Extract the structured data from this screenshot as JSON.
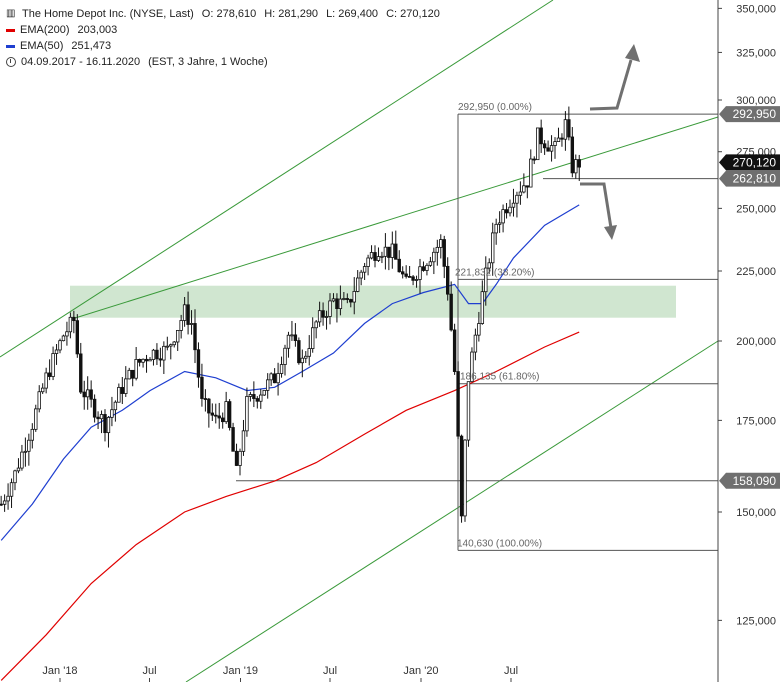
{
  "header": {
    "title": "The Home Depot Inc. (NYSE, Last)",
    "ohlc": {
      "o": "O: 278,610",
      "h": "H: 281,290",
      "l": "L: 269,400",
      "c": "C: 270,120"
    },
    "ema200": {
      "label": "EMA(200)",
      "value": "203,003",
      "color": "#e00000"
    },
    "ema50": {
      "label": "EMA(50)",
      "value": "251,473",
      "color": "#1f3fd0"
    },
    "range": "04.09.2017 - 16.11.2020",
    "range_note": "(EST, 3 Jahre, 1 Woche)"
  },
  "chart_data": {
    "type": "candlestick",
    "y_scale": "log",
    "ylim": [
      112000,
      360000
    ],
    "y_ticks": [
      {
        "v": 350000,
        "label": "350,000"
      },
      {
        "v": 325000,
        "label": "325,000"
      },
      {
        "v": 300000,
        "label": "300,000"
      },
      {
        "v": 275000,
        "label": "275,000"
      },
      {
        "v": 250000,
        "label": "250,000"
      },
      {
        "v": 225000,
        "label": "225,000"
      },
      {
        "v": 200000,
        "label": "200,000"
      },
      {
        "v": 175000,
        "label": "175,000"
      },
      {
        "v": 150000,
        "label": "150,000"
      },
      {
        "v": 125000,
        "label": "125,000"
      }
    ],
    "x_ticks": [
      {
        "date": "2018-01-01",
        "label": "Jan '18"
      },
      {
        "date": "2018-07-01",
        "label": "Jul"
      },
      {
        "date": "2019-01-01",
        "label": "Jan '19"
      },
      {
        "date": "2019-07-01",
        "label": "Jul"
      },
      {
        "date": "2020-01-01",
        "label": "Jan '20"
      },
      {
        "date": "2020-07-01",
        "label": "Jul"
      }
    ],
    "series": [
      {
        "name": "The Home Depot Inc.",
        "kind": "price",
        "points": [
          [
            "2017-09-04",
            152
          ],
          [
            "2017-10-02",
            160
          ],
          [
            "2017-11-06",
            174
          ],
          [
            "2017-12-04",
            188
          ],
          [
            "2018-01-08",
            202
          ],
          [
            "2018-01-29",
            207
          ],
          [
            "2018-02-12",
            185
          ],
          [
            "2018-03-05",
            180
          ],
          [
            "2018-04-02",
            174
          ],
          [
            "2018-05-07",
            185
          ],
          [
            "2018-06-04",
            192
          ],
          [
            "2018-07-02",
            196
          ],
          [
            "2018-08-06",
            197
          ],
          [
            "2018-09-10",
            210
          ],
          [
            "2018-09-24",
            206
          ],
          [
            "2018-10-15",
            180
          ],
          [
            "2018-11-12",
            175
          ],
          [
            "2018-12-03",
            178
          ],
          [
            "2018-12-24",
            160
          ],
          [
            "2019-01-14",
            180
          ],
          [
            "2019-02-11",
            184
          ],
          [
            "2019-03-11",
            188
          ],
          [
            "2019-04-08",
            202
          ],
          [
            "2019-05-06",
            193
          ],
          [
            "2019-06-03",
            206
          ],
          [
            "2019-07-08",
            214
          ],
          [
            "2019-08-05",
            212
          ],
          [
            "2019-09-09",
            228
          ],
          [
            "2019-10-07",
            234
          ],
          [
            "2019-11-04",
            232
          ],
          [
            "2019-12-02",
            220
          ],
          [
            "2020-01-06",
            228
          ],
          [
            "2020-02-10",
            236
          ],
          [
            "2020-02-24",
            218
          ],
          [
            "2020-03-09",
            190
          ],
          [
            "2020-03-23",
            148
          ],
          [
            "2020-04-06",
            188
          ],
          [
            "2020-05-04",
            216
          ],
          [
            "2020-06-01",
            244
          ],
          [
            "2020-07-06",
            256
          ],
          [
            "2020-08-03",
            262
          ],
          [
            "2020-08-24",
            282
          ],
          [
            "2020-09-07",
            280
          ],
          [
            "2020-09-28",
            276
          ],
          [
            "2020-10-19",
            288
          ],
          [
            "2020-11-02",
            268
          ],
          [
            "2020-11-16",
            270
          ]
        ]
      },
      {
        "name": "EMA(50)",
        "kind": "line",
        "color": "#1f3fd0",
        "points": [
          [
            "2017-09-04",
            143
          ],
          [
            "2017-11-06",
            152
          ],
          [
            "2018-01-08",
            164
          ],
          [
            "2018-03-05",
            173
          ],
          [
            "2018-05-07",
            178
          ],
          [
            "2018-07-02",
            184
          ],
          [
            "2018-09-10",
            190
          ],
          [
            "2018-11-12",
            188
          ],
          [
            "2019-01-14",
            184
          ],
          [
            "2019-03-11",
            185
          ],
          [
            "2019-05-06",
            190
          ],
          [
            "2019-07-08",
            196
          ],
          [
            "2019-09-09",
            206
          ],
          [
            "2019-11-04",
            213
          ],
          [
            "2020-01-06",
            217
          ],
          [
            "2020-03-09",
            220
          ],
          [
            "2020-04-06",
            213
          ],
          [
            "2020-05-04",
            213
          ],
          [
            "2020-06-01",
            220
          ],
          [
            "2020-07-06",
            230
          ],
          [
            "2020-09-07",
            243
          ],
          [
            "2020-11-16",
            251.473
          ]
        ]
      },
      {
        "name": "EMA(200)",
        "kind": "line",
        "color": "#e00000",
        "points": [
          [
            "2017-09-04",
            113
          ],
          [
            "2017-12-04",
            122
          ],
          [
            "2018-03-05",
            133
          ],
          [
            "2018-06-04",
            142
          ],
          [
            "2018-09-10",
            150
          ],
          [
            "2018-12-03",
            154
          ],
          [
            "2019-03-11",
            158
          ],
          [
            "2019-06-03",
            163
          ],
          [
            "2019-09-09",
            171
          ],
          [
            "2019-12-02",
            178
          ],
          [
            "2020-03-09",
            184
          ],
          [
            "2020-06-01",
            190
          ],
          [
            "2020-09-07",
            198
          ],
          [
            "2020-11-16",
            203.003
          ]
        ]
      }
    ],
    "price_labels": [
      {
        "v": 292950,
        "label": "292,950",
        "style": "grey"
      },
      {
        "v": 270120,
        "label": "270,120",
        "style": "black"
      },
      {
        "v": 262810,
        "label": "262,810",
        "style": "grey"
      },
      {
        "v": 158090,
        "label": "158,090",
        "style": "grey"
      }
    ],
    "fibonacci": [
      {
        "v": 292950,
        "label": "292,950 (0.00%)"
      },
      {
        "v": 221832,
        "label": "221,832 (38.20%)"
      },
      {
        "v": 186135,
        "label": "186,135 (61.80%)"
      },
      {
        "v": 140630,
        "label": "140,630 (100.00%)"
      }
    ],
    "support_zone": [
      208000,
      219500
    ],
    "colors": {
      "trend": "#3a9a3a",
      "zone": "#c8e2c8",
      "level": "#555555",
      "candle": "#111111"
    }
  }
}
